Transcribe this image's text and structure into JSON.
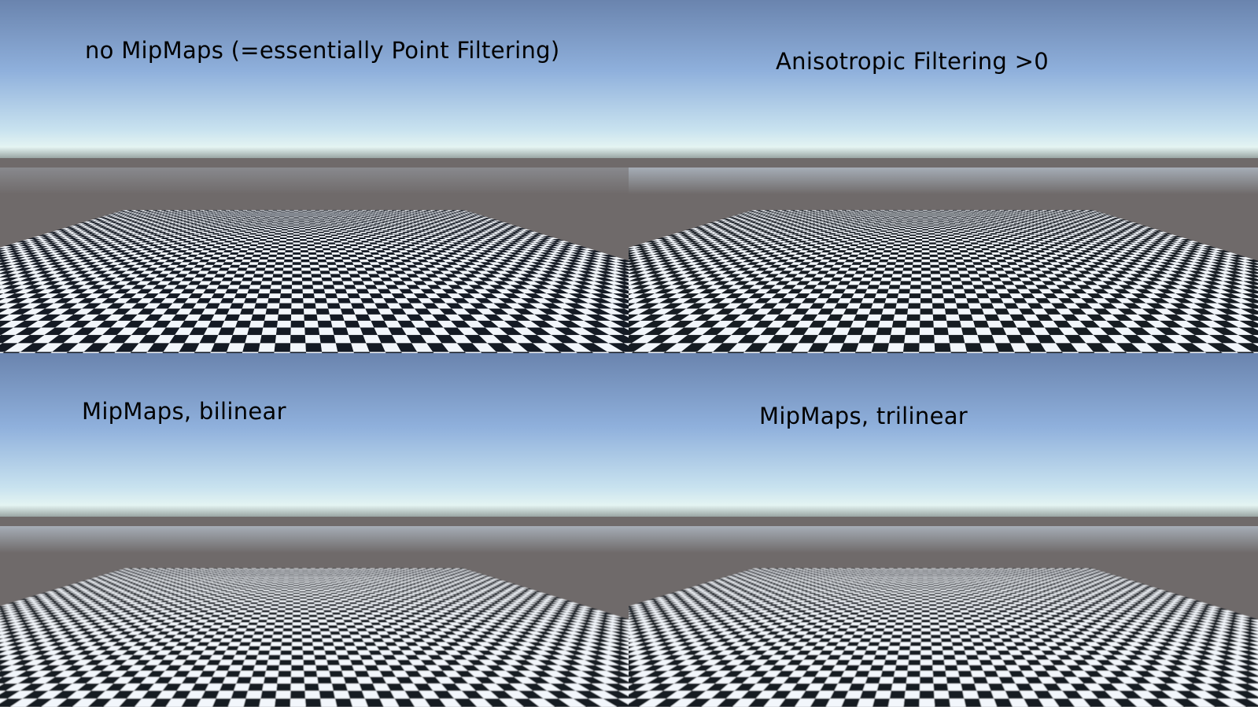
{
  "panels": [
    {
      "id": "no-mipmaps",
      "label": "no MipMaps (=essentially Point Filtering)",
      "filter": "point"
    },
    {
      "id": "anisotropic",
      "label": "Anisotropic Filtering >0",
      "filter": "anisotropic"
    },
    {
      "id": "bilinear",
      "label": "MipMaps, bilinear",
      "filter": "bilinear"
    },
    {
      "id": "trilinear",
      "label": "MipMaps, trilinear",
      "filter": "trilinear"
    }
  ],
  "colors": {
    "sky_top": "#6a84ae",
    "sky_mid": "#8fb0dc",
    "horizon_glow": "#e4f4f2",
    "ground_haze": "#6f6a6a",
    "checker_dark": "#141a24",
    "checker_light": "#f2f6fb"
  }
}
